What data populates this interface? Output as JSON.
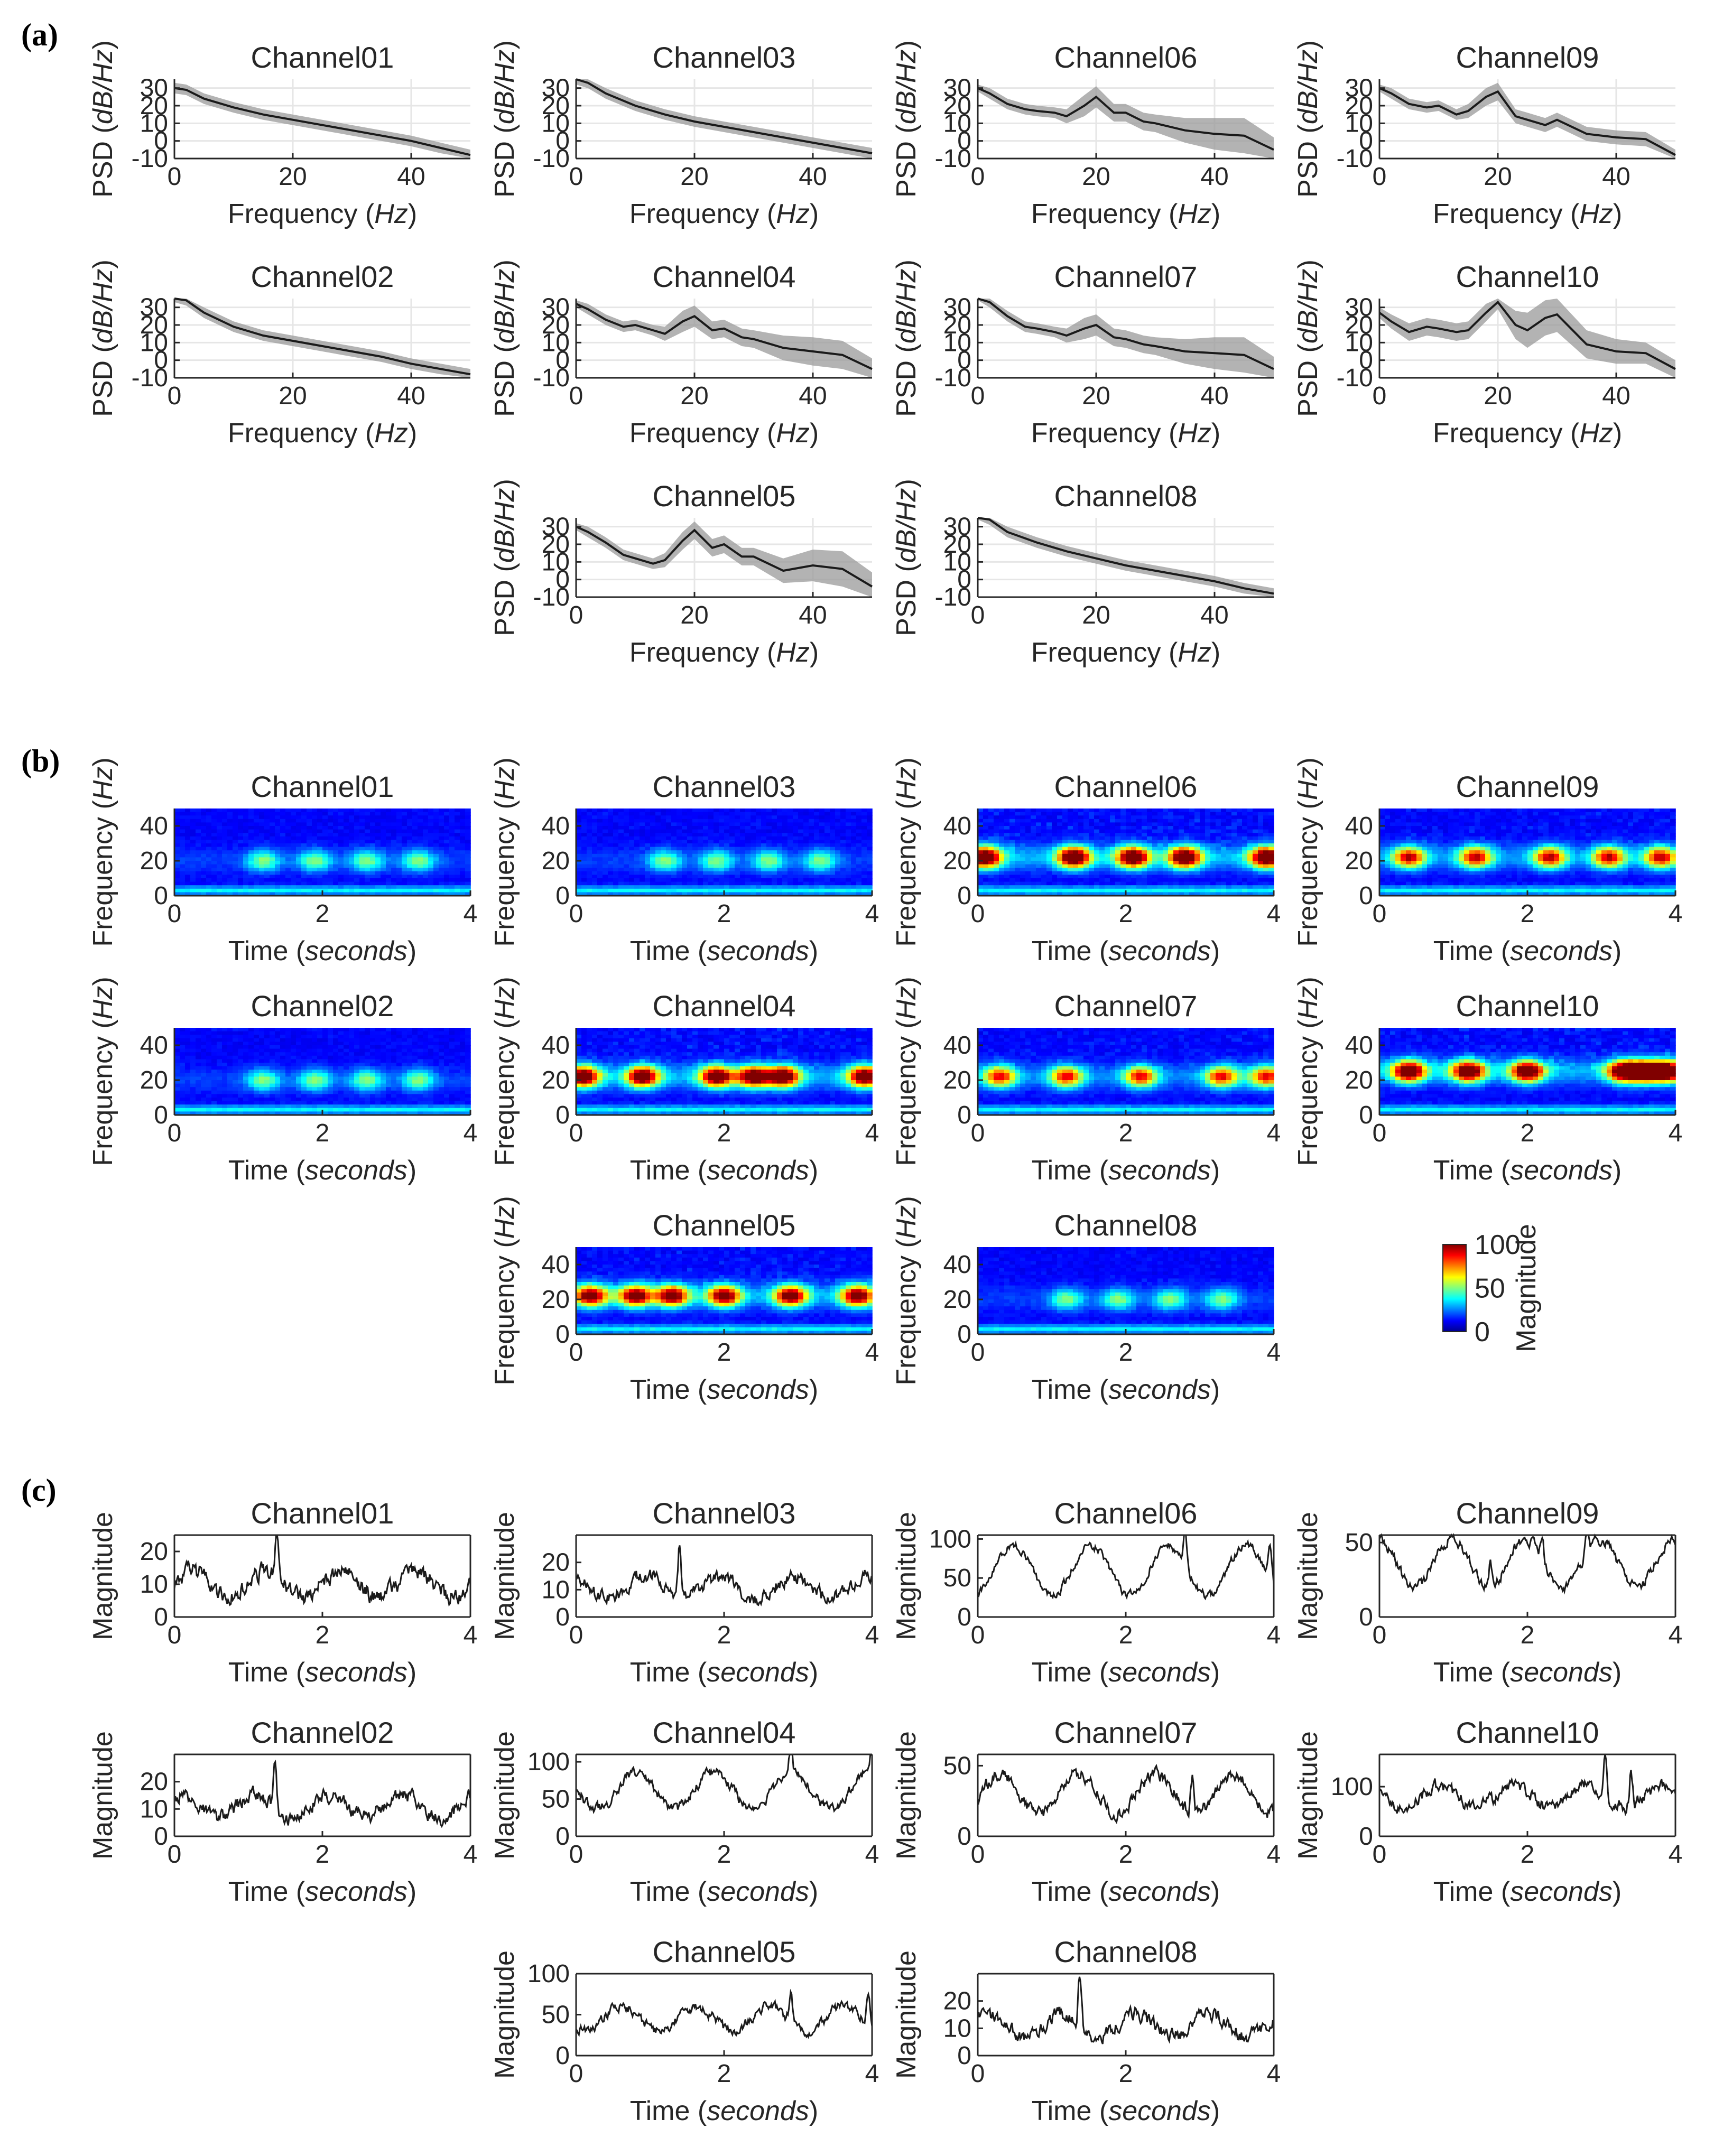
{
  "panel_labels": [
    "(a)",
    "(b)",
    "(c)"
  ],
  "chart_data": [
    {
      "panel": "(a)",
      "type": "line",
      "xlabel": "Frequency (Hz)",
      "ylabel": "PSD (dB/Hz)",
      "xlim": [
        0,
        50
      ],
      "xticks": [
        "0",
        "20",
        "40"
      ],
      "ylim": [
        -10,
        35
      ],
      "yticks": [
        "-10",
        "0",
        "10",
        "20",
        "30"
      ],
      "grid": true,
      "shaded_band": "gray",
      "subplots": [
        {
          "title": "Channel01",
          "x": [
            0,
            2,
            5,
            10,
            15,
            20,
            25,
            30,
            35,
            40,
            45,
            50
          ],
          "values": [
            30,
            29,
            24,
            19,
            15,
            12,
            9,
            6,
            3,
            0,
            -4,
            -8
          ],
          "band": [
            3,
            3,
            3,
            3,
            3,
            3,
            3,
            3,
            3,
            3,
            3,
            3
          ]
        },
        {
          "title": "Channel02",
          "x": [
            0,
            2,
            5,
            10,
            15,
            20,
            25,
            30,
            35,
            40,
            45,
            50
          ],
          "values": [
            36,
            34,
            27,
            19,
            14,
            11,
            8,
            5,
            2,
            -2,
            -5,
            -8
          ],
          "band": [
            3,
            3,
            3,
            3,
            3,
            3,
            3,
            3,
            3,
            3,
            3,
            3
          ]
        },
        {
          "title": "Channel03",
          "x": [
            0,
            2,
            5,
            10,
            15,
            20,
            25,
            30,
            35,
            40,
            45,
            50
          ],
          "values": [
            35,
            33,
            27,
            20,
            15,
            11,
            8,
            5,
            2,
            -1,
            -4,
            -7
          ],
          "band": [
            3,
            3,
            3,
            3,
            3,
            3,
            3,
            3,
            3,
            3,
            3,
            3
          ]
        },
        {
          "title": "Channel04",
          "x": [
            0,
            2,
            5,
            8,
            10,
            13,
            15,
            18,
            20,
            23,
            25,
            28,
            30,
            35,
            40,
            45,
            50
          ],
          "values": [
            32,
            29,
            23,
            19,
            20,
            17,
            15,
            22,
            25,
            17,
            18,
            13,
            12,
            7,
            5,
            3,
            -5
          ],
          "band": [
            2,
            3,
            3,
            3,
            3,
            3,
            4,
            6,
            6,
            5,
            5,
            5,
            5,
            7,
            8,
            8,
            6
          ]
        },
        {
          "title": "Channel05",
          "x": [
            0,
            2,
            5,
            8,
            10,
            13,
            15,
            18,
            20,
            23,
            25,
            28,
            30,
            35,
            40,
            45,
            50
          ],
          "values": [
            30,
            27,
            21,
            14,
            12,
            9,
            11,
            22,
            28,
            18,
            20,
            13,
            13,
            5,
            8,
            6,
            -4
          ],
          "band": [
            2,
            3,
            3,
            3,
            3,
            3,
            4,
            5,
            5,
            5,
            5,
            5,
            5,
            7,
            9,
            10,
            8
          ]
        },
        {
          "title": "Channel06",
          "x": [
            0,
            2,
            5,
            8,
            10,
            13,
            15,
            18,
            20,
            23,
            25,
            28,
            30,
            35,
            40,
            45,
            50
          ],
          "values": [
            30,
            27,
            21,
            18,
            17,
            16,
            14,
            20,
            25,
            16,
            16,
            11,
            10,
            6,
            4,
            3,
            -5
          ],
          "band": [
            2,
            3,
            3,
            3,
            3,
            3,
            4,
            6,
            6,
            5,
            5,
            5,
            5,
            7,
            9,
            10,
            7
          ]
        },
        {
          "title": "Channel07",
          "x": [
            0,
            2,
            5,
            8,
            10,
            13,
            15,
            18,
            20,
            23,
            25,
            28,
            30,
            35,
            40,
            45,
            50
          ],
          "values": [
            36,
            33,
            25,
            19,
            18,
            16,
            14,
            18,
            20,
            13,
            12,
            9,
            8,
            5,
            4,
            3,
            -5
          ],
          "band": [
            2,
            3,
            3,
            3,
            3,
            3,
            4,
            6,
            6,
            5,
            5,
            5,
            5,
            7,
            9,
            10,
            7
          ]
        },
        {
          "title": "Channel08",
          "x": [
            0,
            2,
            5,
            10,
            15,
            20,
            25,
            30,
            35,
            40,
            45,
            50
          ],
          "values": [
            37,
            34,
            27,
            21,
            16,
            12,
            8,
            5,
            2,
            -1,
            -5,
            -8
          ],
          "band": [
            3,
            3,
            3,
            3,
            3,
            3,
            3,
            3,
            3,
            3,
            3,
            3
          ]
        },
        {
          "title": "Channel09",
          "x": [
            0,
            2,
            5,
            8,
            10,
            13,
            15,
            18,
            20,
            23,
            25,
            28,
            30,
            35,
            40,
            45,
            50
          ],
          "values": [
            30,
            27,
            21,
            19,
            20,
            15,
            17,
            25,
            28,
            14,
            12,
            9,
            12,
            4,
            2,
            1,
            -8
          ],
          "band": [
            2,
            3,
            3,
            3,
            3,
            3,
            4,
            5,
            5,
            4,
            4,
            4,
            4,
            4,
            4,
            4,
            3
          ]
        },
        {
          "title": "Channel10",
          "x": [
            0,
            2,
            5,
            8,
            10,
            13,
            15,
            18,
            20,
            23,
            25,
            28,
            30,
            35,
            40,
            45,
            50
          ],
          "values": [
            27,
            22,
            16,
            19,
            18,
            16,
            17,
            27,
            33,
            20,
            17,
            24,
            26,
            9,
            5,
            4,
            -5
          ],
          "band": [
            3,
            4,
            5,
            5,
            5,
            5,
            5,
            5,
            4,
            8,
            10,
            10,
            10,
            8,
            7,
            6,
            5
          ]
        }
      ]
    },
    {
      "panel": "(b)",
      "type": "heatmap",
      "xlabel": "Time (seconds)",
      "ylabel": "Frequency (Hz)",
      "xlim": [
        0,
        4
      ],
      "xticks": [
        "0",
        "2",
        "4"
      ],
      "ylim": [
        0,
        50
      ],
      "yticks": [
        "0",
        "20",
        "40"
      ],
      "colormap": "jet",
      "colorbar": {
        "label": "Magnitude",
        "ticks": [
          "0",
          "50",
          "100"
        ],
        "range": [
          0,
          100
        ]
      },
      "subplots": [
        {
          "title": "Channel01",
          "band_hz": 20,
          "peak_magnitude": 35,
          "blob_times": [
            1.2,
            1.9,
            2.6,
            3.3
          ]
        },
        {
          "title": "Channel02",
          "band_hz": 20,
          "peak_magnitude": 35,
          "blob_times": [
            1.2,
            1.9,
            2.6,
            3.3
          ]
        },
        {
          "title": "Channel03",
          "band_hz": 20,
          "peak_magnitude": 35,
          "blob_times": [
            1.2,
            1.9,
            2.6,
            3.3
          ]
        },
        {
          "title": "Channel04",
          "band_hz": 22,
          "peak_magnitude": 95,
          "blob_times": [
            0.1,
            0.9,
            1.9,
            2.4,
            2.8,
            3.9
          ]
        },
        {
          "title": "Channel05",
          "band_hz": 22,
          "peak_magnitude": 90,
          "blob_times": [
            0.2,
            0.8,
            1.3,
            2.0,
            2.9,
            3.8
          ]
        },
        {
          "title": "Channel06",
          "band_hz": 22,
          "peak_magnitude": 100,
          "blob_times": [
            0.1,
            1.3,
            2.1,
            2.8,
            3.9
          ]
        },
        {
          "title": "Channel07",
          "band_hz": 22,
          "peak_magnitude": 70,
          "blob_times": [
            0.3,
            1.2,
            2.2,
            3.3,
            3.9
          ]
        },
        {
          "title": "Channel08",
          "band_hz": 20,
          "peak_magnitude": 35,
          "blob_times": [
            1.2,
            1.9,
            2.6,
            3.3
          ]
        },
        {
          "title": "Channel09",
          "band_hz": 22,
          "peak_magnitude": 75,
          "blob_times": [
            0.4,
            1.3,
            2.3,
            3.1,
            3.8
          ]
        },
        {
          "title": "Channel10",
          "band_hz": 25,
          "peak_magnitude": 100,
          "blob_times": [
            0.4,
            1.2,
            2.0,
            3.3,
            3.6,
            3.9
          ]
        }
      ]
    },
    {
      "panel": "(c)",
      "type": "line",
      "xlabel": "Time (seconds)",
      "ylabel": "Magnitude",
      "xlim": [
        0,
        4
      ],
      "xticks": [
        "0",
        "2",
        "4"
      ],
      "subplots": [
        {
          "title": "Channel01",
          "ylim": [
            0,
            25
          ],
          "yticks": [
            "0",
            "10",
            "20"
          ],
          "mean": 10,
          "amp": 4,
          "period": 1.0,
          "noise": 3,
          "spikes": [
            [
              1.38,
              25
            ]
          ]
        },
        {
          "title": "Channel02",
          "ylim": [
            0,
            30
          ],
          "yticks": [
            "0",
            "10",
            "20"
          ],
          "mean": 11,
          "amp": 4,
          "period": 1.0,
          "noise": 3,
          "spikes": [
            [
              1.36,
              30
            ]
          ]
        },
        {
          "title": "Channel03",
          "ylim": [
            0,
            30
          ],
          "yticks": [
            "0",
            "10",
            "20"
          ],
          "mean": 11,
          "amp": 4,
          "period": 1.0,
          "noise": 3,
          "spikes": [
            [
              1.4,
              30
            ]
          ]
        },
        {
          "title": "Channel04",
          "ylim": [
            0,
            110
          ],
          "yticks": [
            "0",
            "50",
            "100"
          ],
          "mean": 62,
          "amp": 25,
          "period": 1.05,
          "noise": 8,
          "spikes": [
            [
              2.9,
              108
            ],
            [
              4.0,
              108
            ]
          ]
        },
        {
          "title": "Channel05",
          "ylim": [
            0,
            100
          ],
          "yticks": [
            "0",
            "50",
            "100"
          ],
          "mean": 45,
          "amp": 15,
          "period": 1.0,
          "noise": 7,
          "spikes": [
            [
              2.9,
              80
            ],
            [
              3.95,
              88
            ]
          ]
        },
        {
          "title": "Channel06",
          "ylim": [
            0,
            105
          ],
          "yticks": [
            "0",
            "50",
            "100"
          ],
          "mean": 60,
          "amp": 32,
          "period": 1.05,
          "noise": 6,
          "spikes": [
            [
              2.8,
              105
            ],
            [
              3.95,
              100
            ]
          ]
        },
        {
          "title": "Channel07",
          "ylim": [
            0,
            58
          ],
          "yticks": [
            "0",
            "50"
          ],
          "mean": 30,
          "amp": 14,
          "period": 1.05,
          "noise": 5,
          "spikes": [
            [
              2.9,
              56
            ]
          ]
        },
        {
          "title": "Channel08",
          "ylim": [
            0,
            30
          ],
          "yticks": [
            "0",
            "10",
            "20"
          ],
          "mean": 11,
          "amp": 4,
          "period": 1.0,
          "noise": 3,
          "spikes": [
            [
              1.38,
              30
            ]
          ]
        },
        {
          "title": "Channel09",
          "ylim": [
            0,
            55
          ],
          "yticks": [
            "0",
            "50"
          ],
          "mean": 36,
          "amp": 16,
          "period": 1.0,
          "noise": 4,
          "spikes": [
            [
              1.5,
              53
            ],
            [
              2.2,
              53
            ],
            [
              2.8,
              53
            ]
          ]
        },
        {
          "title": "Channel10",
          "ylim": [
            0,
            165
          ],
          "yticks": [
            "0",
            "100"
          ],
          "mean": 80,
          "amp": 22,
          "period": 1.0,
          "noise": 15,
          "spikes": [
            [
              3.05,
              160
            ],
            [
              3.4,
              150
            ]
          ]
        }
      ]
    }
  ]
}
